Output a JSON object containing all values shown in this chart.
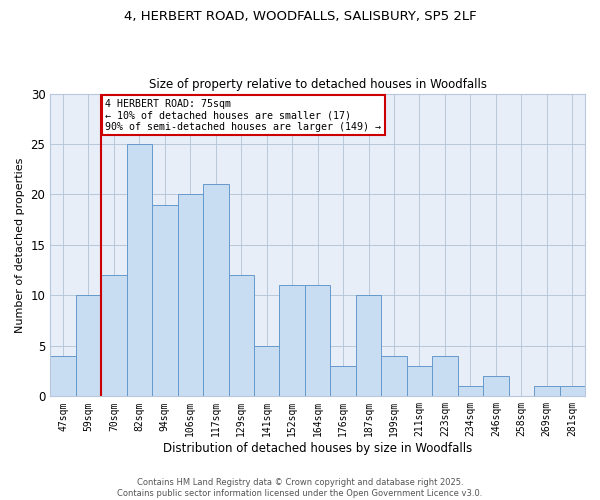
{
  "title_line1": "4, HERBERT ROAD, WOODFALLS, SALISBURY, SP5 2LF",
  "title_line2": "Size of property relative to detached houses in Woodfalls",
  "xlabel": "Distribution of detached houses by size in Woodfalls",
  "ylabel": "Number of detached properties",
  "categories": [
    "47sqm",
    "59sqm",
    "70sqm",
    "82sqm",
    "94sqm",
    "106sqm",
    "117sqm",
    "129sqm",
    "141sqm",
    "152sqm",
    "164sqm",
    "176sqm",
    "187sqm",
    "199sqm",
    "211sqm",
    "223sqm",
    "234sqm",
    "246sqm",
    "258sqm",
    "269sqm",
    "281sqm"
  ],
  "values": [
    4,
    10,
    12,
    25,
    19,
    20,
    21,
    12,
    5,
    11,
    11,
    3,
    10,
    4,
    3,
    4,
    1,
    2,
    0,
    1,
    1
  ],
  "bar_color": "#c9ddf2",
  "bar_edge_color": "#6699cc",
  "grid_color": "#b8c8dc",
  "bg_color": "#e8eef8",
  "vline_color": "#cc0000",
  "annotation_text": "4 HERBERT ROAD: 75sqm\n← 10% of detached houses are smaller (17)\n90% of semi-detached houses are larger (149) →",
  "annotation_box_color": "#ffffff",
  "annotation_border_color": "#cc0000",
  "footer_line1": "Contains HM Land Registry data © Crown copyright and database right 2025.",
  "footer_line2": "Contains public sector information licensed under the Open Government Licence v3.0.",
  "ylim": [
    0,
    30
  ],
  "yticks": [
    0,
    5,
    10,
    15,
    20,
    25,
    30
  ],
  "vline_xindex": 2
}
